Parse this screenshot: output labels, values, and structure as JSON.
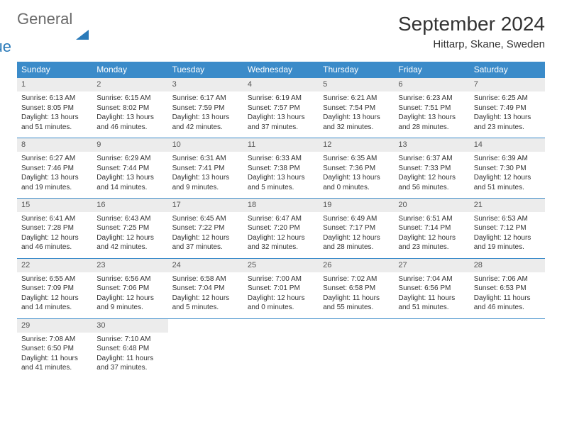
{
  "brand": {
    "part1": "General",
    "part2": "Blue"
  },
  "title": "September 2024",
  "location": "Hittarp, Skane, Sweden",
  "weekdays": [
    "Sunday",
    "Monday",
    "Tuesday",
    "Wednesday",
    "Thursday",
    "Friday",
    "Saturday"
  ],
  "colors": {
    "header_bg": "#3b8bc9",
    "header_text": "#ffffff",
    "daynum_bg": "#ececec",
    "border": "#3b8bc9",
    "brand_gray": "#6b6b6b",
    "brand_blue": "#2a7ab9"
  },
  "weeks": [
    [
      {
        "n": "1",
        "sunrise": "Sunrise: 6:13 AM",
        "sunset": "Sunset: 8:05 PM",
        "daylight": "Daylight: 13 hours and 51 minutes."
      },
      {
        "n": "2",
        "sunrise": "Sunrise: 6:15 AM",
        "sunset": "Sunset: 8:02 PM",
        "daylight": "Daylight: 13 hours and 46 minutes."
      },
      {
        "n": "3",
        "sunrise": "Sunrise: 6:17 AM",
        "sunset": "Sunset: 7:59 PM",
        "daylight": "Daylight: 13 hours and 42 minutes."
      },
      {
        "n": "4",
        "sunrise": "Sunrise: 6:19 AM",
        "sunset": "Sunset: 7:57 PM",
        "daylight": "Daylight: 13 hours and 37 minutes."
      },
      {
        "n": "5",
        "sunrise": "Sunrise: 6:21 AM",
        "sunset": "Sunset: 7:54 PM",
        "daylight": "Daylight: 13 hours and 32 minutes."
      },
      {
        "n": "6",
        "sunrise": "Sunrise: 6:23 AM",
        "sunset": "Sunset: 7:51 PM",
        "daylight": "Daylight: 13 hours and 28 minutes."
      },
      {
        "n": "7",
        "sunrise": "Sunrise: 6:25 AM",
        "sunset": "Sunset: 7:49 PM",
        "daylight": "Daylight: 13 hours and 23 minutes."
      }
    ],
    [
      {
        "n": "8",
        "sunrise": "Sunrise: 6:27 AM",
        "sunset": "Sunset: 7:46 PM",
        "daylight": "Daylight: 13 hours and 19 minutes."
      },
      {
        "n": "9",
        "sunrise": "Sunrise: 6:29 AM",
        "sunset": "Sunset: 7:44 PM",
        "daylight": "Daylight: 13 hours and 14 minutes."
      },
      {
        "n": "10",
        "sunrise": "Sunrise: 6:31 AM",
        "sunset": "Sunset: 7:41 PM",
        "daylight": "Daylight: 13 hours and 9 minutes."
      },
      {
        "n": "11",
        "sunrise": "Sunrise: 6:33 AM",
        "sunset": "Sunset: 7:38 PM",
        "daylight": "Daylight: 13 hours and 5 minutes."
      },
      {
        "n": "12",
        "sunrise": "Sunrise: 6:35 AM",
        "sunset": "Sunset: 7:36 PM",
        "daylight": "Daylight: 13 hours and 0 minutes."
      },
      {
        "n": "13",
        "sunrise": "Sunrise: 6:37 AM",
        "sunset": "Sunset: 7:33 PM",
        "daylight": "Daylight: 12 hours and 56 minutes."
      },
      {
        "n": "14",
        "sunrise": "Sunrise: 6:39 AM",
        "sunset": "Sunset: 7:30 PM",
        "daylight": "Daylight: 12 hours and 51 minutes."
      }
    ],
    [
      {
        "n": "15",
        "sunrise": "Sunrise: 6:41 AM",
        "sunset": "Sunset: 7:28 PM",
        "daylight": "Daylight: 12 hours and 46 minutes."
      },
      {
        "n": "16",
        "sunrise": "Sunrise: 6:43 AM",
        "sunset": "Sunset: 7:25 PM",
        "daylight": "Daylight: 12 hours and 42 minutes."
      },
      {
        "n": "17",
        "sunrise": "Sunrise: 6:45 AM",
        "sunset": "Sunset: 7:22 PM",
        "daylight": "Daylight: 12 hours and 37 minutes."
      },
      {
        "n": "18",
        "sunrise": "Sunrise: 6:47 AM",
        "sunset": "Sunset: 7:20 PM",
        "daylight": "Daylight: 12 hours and 32 minutes."
      },
      {
        "n": "19",
        "sunrise": "Sunrise: 6:49 AM",
        "sunset": "Sunset: 7:17 PM",
        "daylight": "Daylight: 12 hours and 28 minutes."
      },
      {
        "n": "20",
        "sunrise": "Sunrise: 6:51 AM",
        "sunset": "Sunset: 7:14 PM",
        "daylight": "Daylight: 12 hours and 23 minutes."
      },
      {
        "n": "21",
        "sunrise": "Sunrise: 6:53 AM",
        "sunset": "Sunset: 7:12 PM",
        "daylight": "Daylight: 12 hours and 19 minutes."
      }
    ],
    [
      {
        "n": "22",
        "sunrise": "Sunrise: 6:55 AM",
        "sunset": "Sunset: 7:09 PM",
        "daylight": "Daylight: 12 hours and 14 minutes."
      },
      {
        "n": "23",
        "sunrise": "Sunrise: 6:56 AM",
        "sunset": "Sunset: 7:06 PM",
        "daylight": "Daylight: 12 hours and 9 minutes."
      },
      {
        "n": "24",
        "sunrise": "Sunrise: 6:58 AM",
        "sunset": "Sunset: 7:04 PM",
        "daylight": "Daylight: 12 hours and 5 minutes."
      },
      {
        "n": "25",
        "sunrise": "Sunrise: 7:00 AM",
        "sunset": "Sunset: 7:01 PM",
        "daylight": "Daylight: 12 hours and 0 minutes."
      },
      {
        "n": "26",
        "sunrise": "Sunrise: 7:02 AM",
        "sunset": "Sunset: 6:58 PM",
        "daylight": "Daylight: 11 hours and 55 minutes."
      },
      {
        "n": "27",
        "sunrise": "Sunrise: 7:04 AM",
        "sunset": "Sunset: 6:56 PM",
        "daylight": "Daylight: 11 hours and 51 minutes."
      },
      {
        "n": "28",
        "sunrise": "Sunrise: 7:06 AM",
        "sunset": "Sunset: 6:53 PM",
        "daylight": "Daylight: 11 hours and 46 minutes."
      }
    ],
    [
      {
        "n": "29",
        "sunrise": "Sunrise: 7:08 AM",
        "sunset": "Sunset: 6:50 PM",
        "daylight": "Daylight: 11 hours and 41 minutes."
      },
      {
        "n": "30",
        "sunrise": "Sunrise: 7:10 AM",
        "sunset": "Sunset: 6:48 PM",
        "daylight": "Daylight: 11 hours and 37 minutes."
      },
      {
        "empty": true
      },
      {
        "empty": true
      },
      {
        "empty": true
      },
      {
        "empty": true
      },
      {
        "empty": true
      }
    ]
  ]
}
